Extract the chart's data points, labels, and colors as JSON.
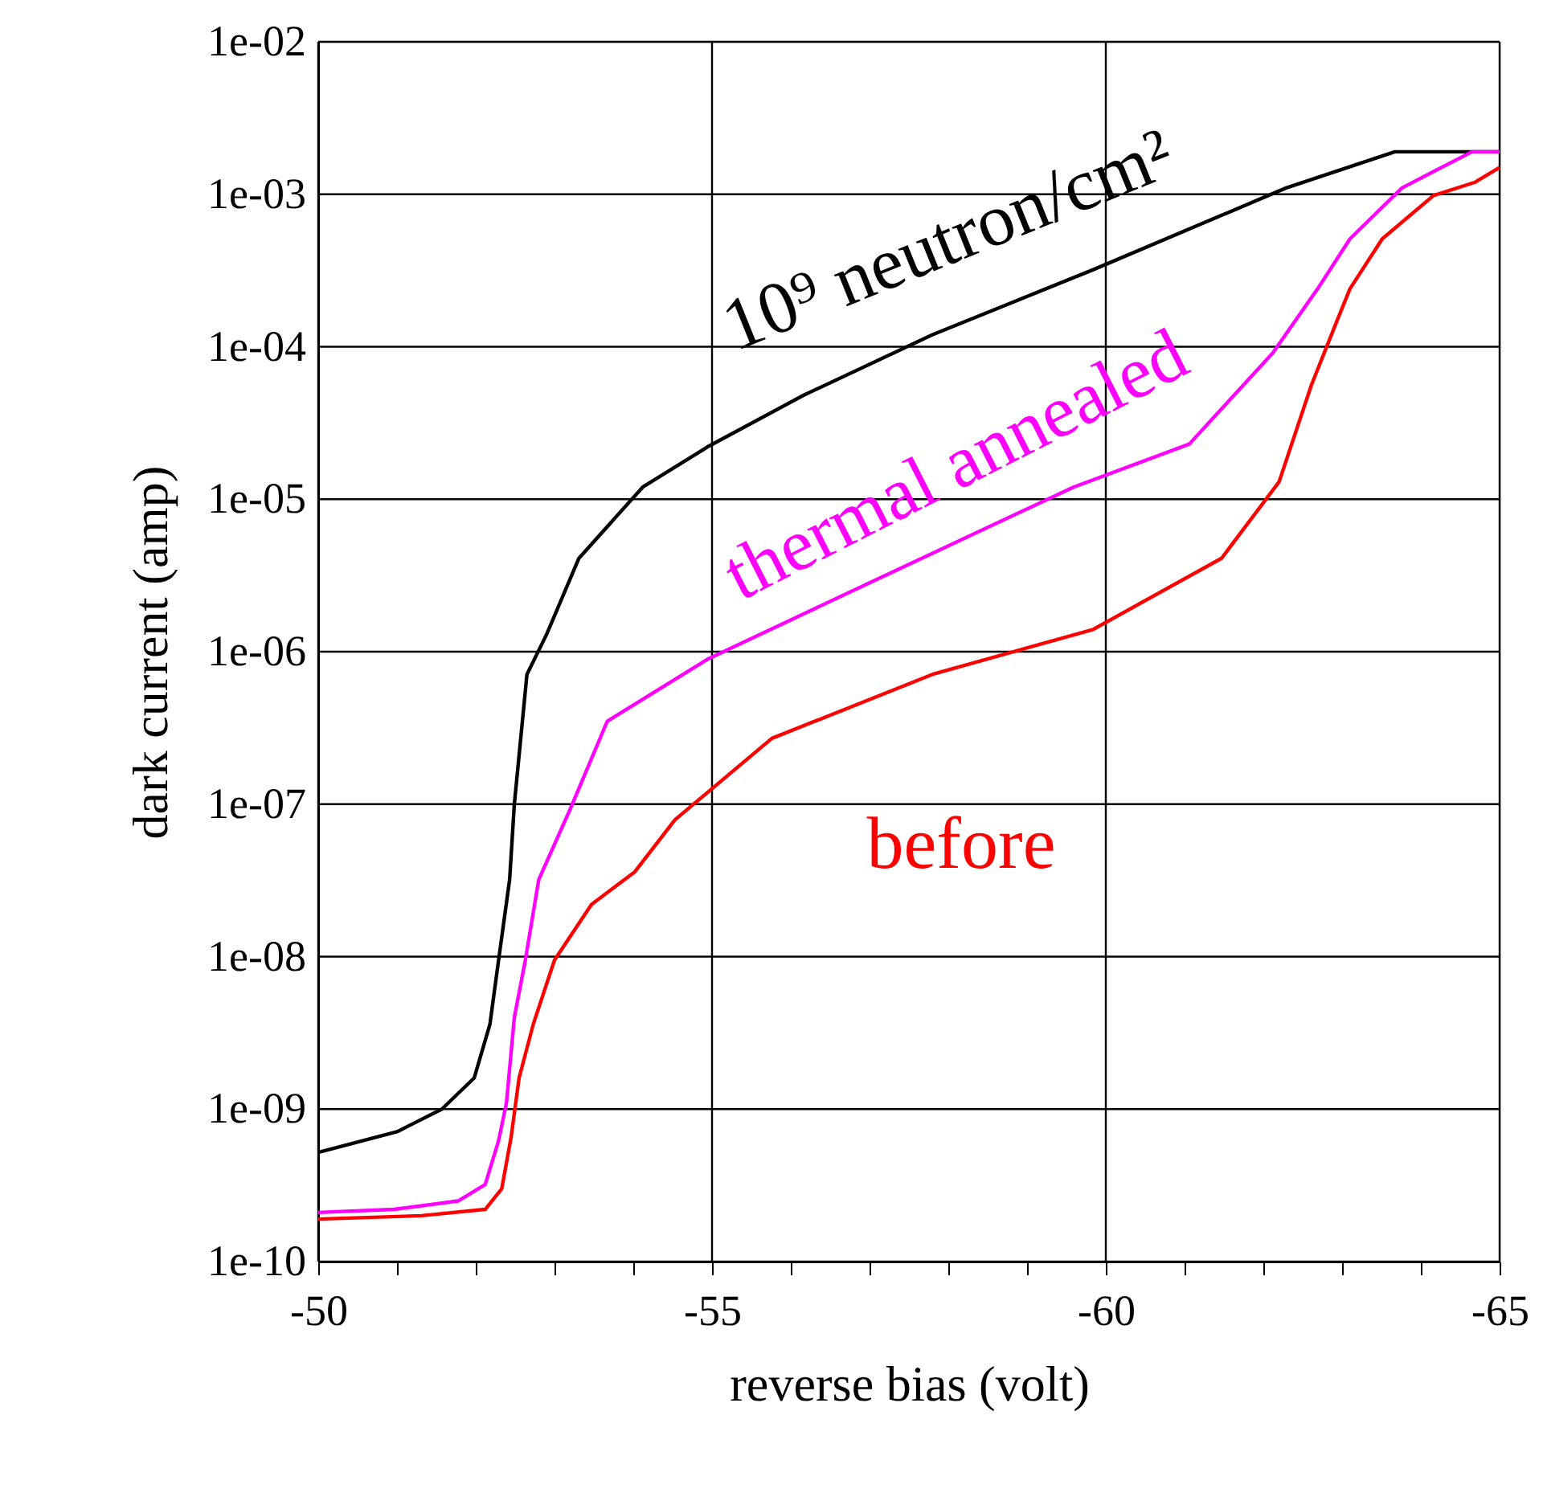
{
  "chart_data": {
    "type": "line",
    "xlabel": "reverse bias (volt)",
    "ylabel": "dark current (amp)",
    "log": "y",
    "grid": true,
    "line_style": "solid",
    "xlim": [
      -50,
      -65
    ],
    "xticks": [
      -50,
      {
        "value": -51,
        "label": null
      },
      {
        "value": -52,
        "label": null
      },
      {
        "value": -53,
        "label": null
      },
      {
        "value": -54,
        "label": null
      },
      -55,
      {
        "value": -56,
        "label": null
      },
      {
        "value": -57,
        "label": null
      },
      {
        "value": -58,
        "label": null
      },
      {
        "value": -59,
        "label": null
      },
      -60,
      {
        "value": -61,
        "label": null
      },
      {
        "value": -62,
        "label": null
      },
      {
        "value": -63,
        "label": null
      },
      {
        "value": -64,
        "label": null
      },
      -65
    ],
    "ylim": [
      1e-10,
      0.01
    ],
    "yticks": [
      {
        "value": 1e-10,
        "label": "1e-10"
      },
      {
        "value": 1e-09,
        "label": "1e-09"
      },
      {
        "value": 1e-08,
        "label": "1e-08"
      },
      {
        "value": 1e-07,
        "label": "1e-07"
      },
      {
        "value": 1e-06,
        "label": "1e-06"
      },
      {
        "value": 1e-05,
        "label": "1e-05"
      },
      {
        "value": 0.0001,
        "label": "1e-04"
      },
      {
        "value": 0.001,
        "label": "1e-03"
      },
      {
        "value": 0.01,
        "label": "1e-02"
      }
    ],
    "series": [
      {
        "name": "10⁹ neutron/cm²",
        "color": "#000000",
        "x": [
          -50,
          -51,
          -51.57,
          -51.98,
          -52.18,
          -52.29,
          -52.43,
          -52.49,
          -52.65,
          -52.9,
          -53.31,
          -54.12,
          -54.94,
          -56.16,
          -57.8,
          -59.84,
          -62.29,
          -63.67,
          -65
        ],
        "values": [
          5.2e-10,
          7.1e-10,
          1e-09,
          1.6e-09,
          3.6e-09,
          9.5e-09,
          3.2e-08,
          1e-07,
          7.1e-07,
          1.3e-06,
          4.1e-06,
          1.2e-05,
          2.2e-05,
          4.8e-05,
          0.00012,
          0.00032,
          0.0011,
          0.0019,
          0.0019
        ]
      },
      {
        "name": "thermal annealed",
        "color": "#ff00ff",
        "x": [
          -50,
          -50.96,
          -51.78,
          -52.12,
          -52.29,
          -52.39,
          -52.49,
          -52.63,
          -52.8,
          -53.2,
          -53.67,
          -54.94,
          -56.98,
          -59.59,
          -61.06,
          -62.12,
          -62.69,
          -63.1,
          -63.76,
          -64.65,
          -65
        ],
        "values": [
          2.1e-10,
          2.2e-10,
          2.5e-10,
          3.2e-10,
          6.2e-10,
          1.1e-09,
          4e-09,
          9.5e-09,
          3.2e-08,
          9.3e-08,
          3.5e-07,
          8.9e-07,
          2.8e-06,
          1.2e-05,
          2.3e-05,
          9.1e-05,
          0.00024,
          0.00051,
          0.0011,
          0.0019,
          0.0019
        ]
      },
      {
        "name": "before",
        "color": "#ff0000",
        "x": [
          -50,
          -51.31,
          -52.12,
          -52.33,
          -52.45,
          -52.55,
          -52.73,
          -53.0,
          -53.47,
          -54.02,
          -54.53,
          -55.76,
          -57.8,
          -59.84,
          -61.47,
          -62.2,
          -62.61,
          -62.94,
          -63.1,
          -63.51,
          -64.16,
          -64.69,
          -65
        ],
        "values": [
          1.9e-10,
          2e-10,
          2.2e-10,
          3e-10,
          6.6e-10,
          1.6e-09,
          3.6e-09,
          9.5e-09,
          2.2e-08,
          3.6e-08,
          7.9e-08,
          2.7e-07,
          7.1e-07,
          1.4e-06,
          4.1e-06,
          1.3e-05,
          5.6e-05,
          0.00015,
          0.00024,
          0.00051,
          0.00098,
          0.0012,
          0.0015
        ]
      }
    ]
  }
}
